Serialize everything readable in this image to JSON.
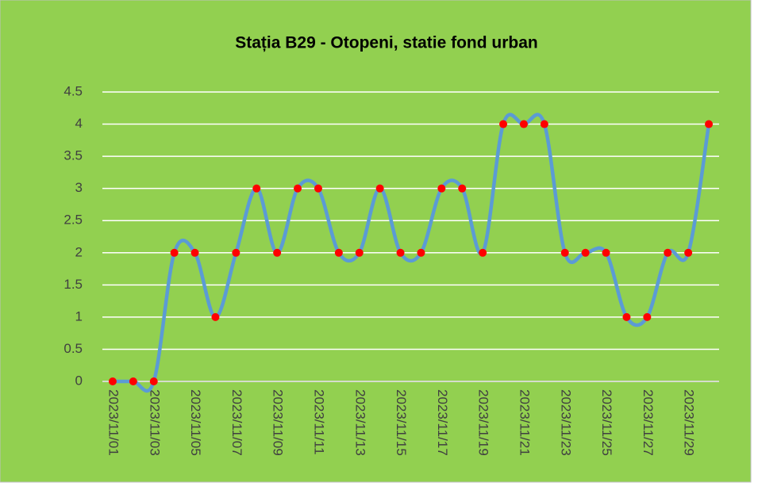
{
  "chart_data": {
    "type": "line",
    "title": "Stația B29 - Otopeni, statie fond urban",
    "categories": [
      "2023/11/01",
      null,
      "2023/11/03",
      null,
      "2023/11/05",
      null,
      "2023/11/07",
      null,
      "2023/11/09",
      null,
      "2023/11/11",
      null,
      "2023/11/13",
      null,
      "2023/11/15",
      null,
      "2023/11/17",
      null,
      "2023/11/19",
      null,
      "2023/11/21",
      null,
      "2023/11/23",
      null,
      "2023/11/25",
      null,
      "2023/11/27",
      null,
      "2023/11/29",
      null
    ],
    "values": [
      0,
      0,
      0,
      2,
      2,
      1,
      2,
      3,
      2,
      3,
      3,
      2,
      2,
      3,
      2,
      2,
      3,
      3,
      2,
      4,
      4,
      4,
      2,
      2,
      2,
      1,
      1,
      2,
      2,
      4
    ],
    "color": "#5b9bd5",
    "marker_color": "#ff0000",
    "smooth": true,
    "ylim": [
      0,
      4.5
    ],
    "yticks": [
      0,
      0.5,
      1,
      1.5,
      2,
      2.5,
      3,
      3.5,
      4,
      4.5
    ],
    "grid": true
  }
}
